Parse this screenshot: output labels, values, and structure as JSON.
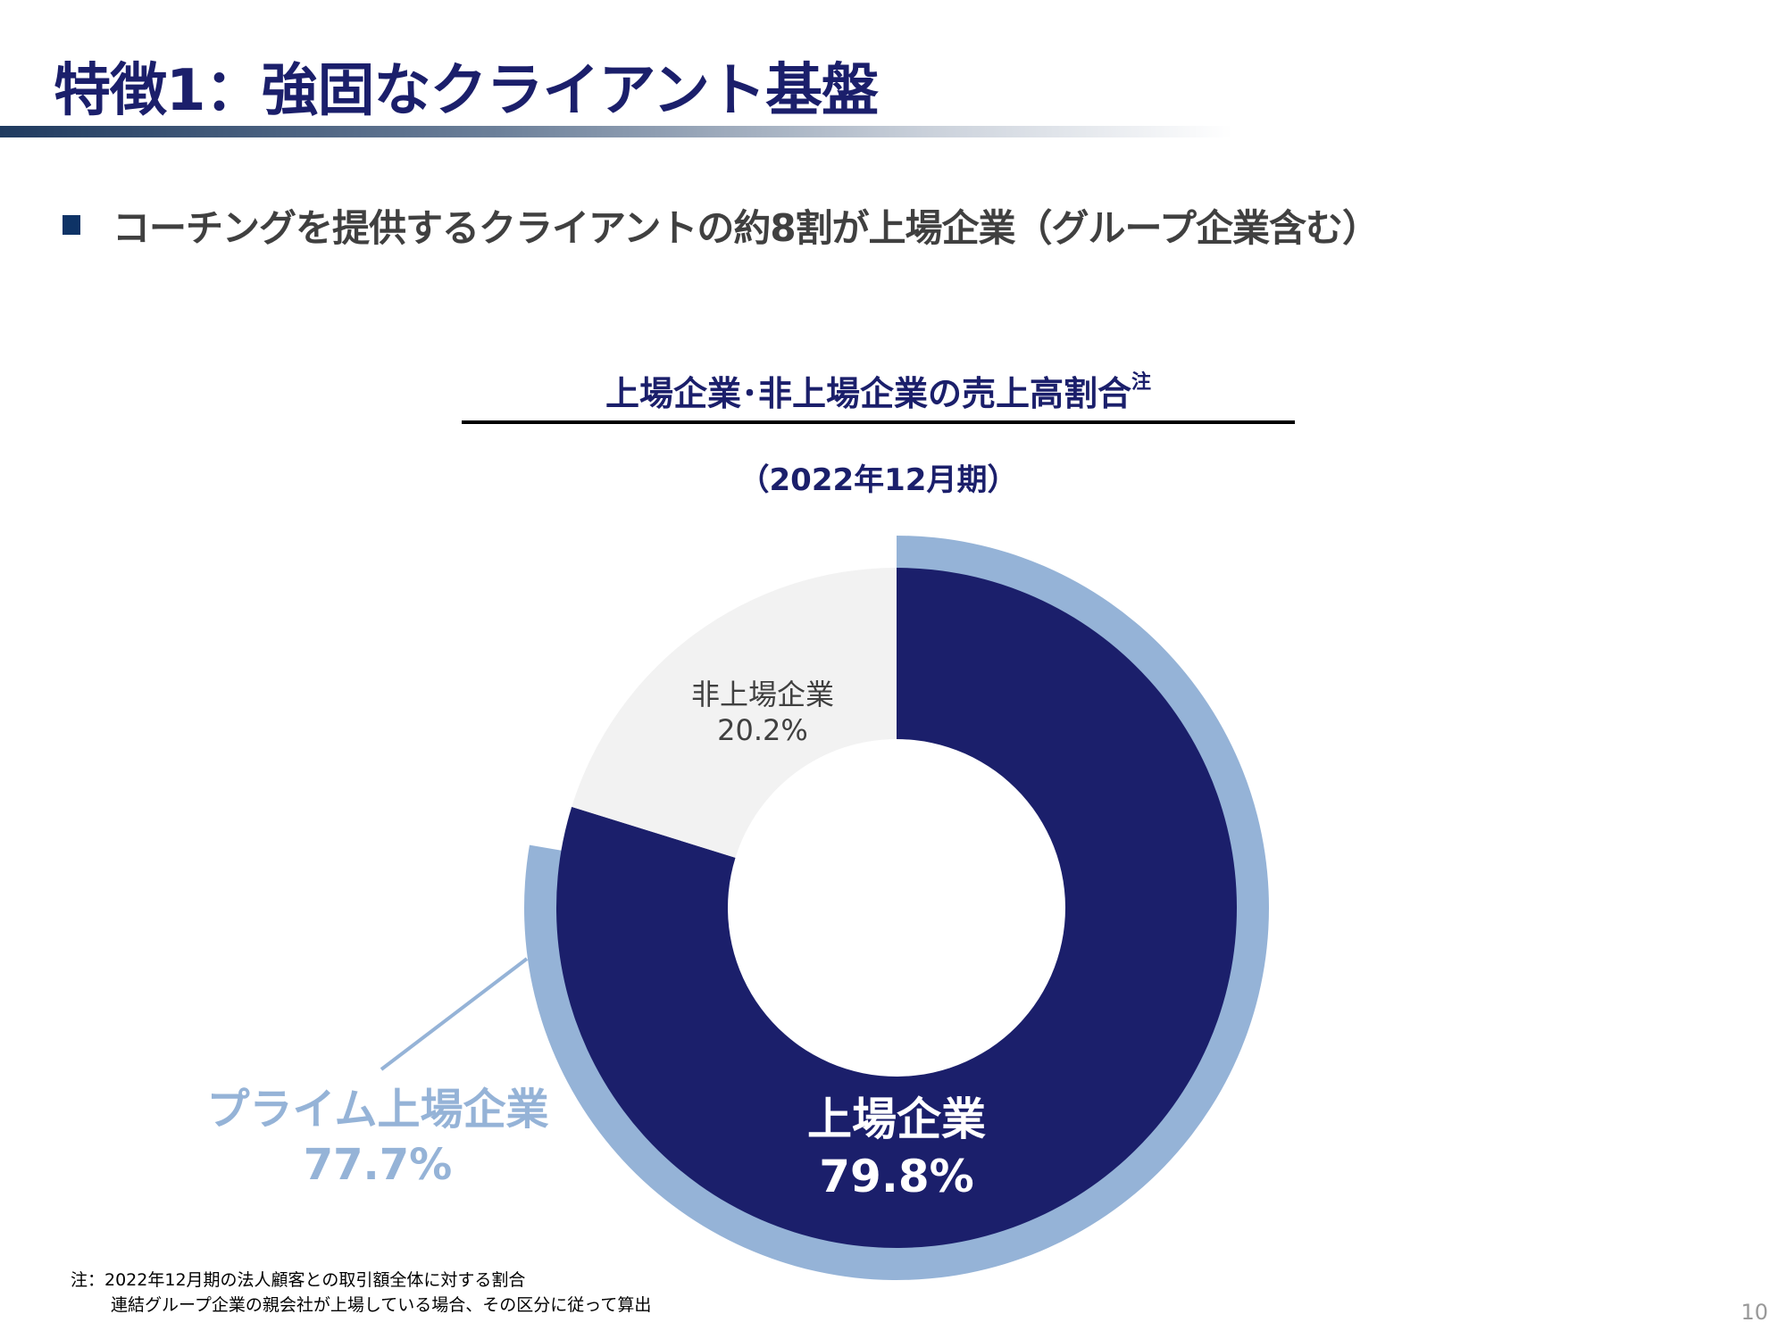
{
  "header": {
    "title": "特徴1：強固なクライアント基盤"
  },
  "headline": "コーチングを提供するクライアントの約8割が上場企業（グループ企業含む）",
  "chart_data": {
    "type": "pie",
    "title": "上場企業･非上場企業の売上高割合",
    "title_note": "注",
    "subtitle": "（2022年12月期）",
    "slices": [
      {
        "label": "上場企業",
        "value": 79.8,
        "value_label": "79.8%",
        "color": "#1b1f6b"
      },
      {
        "label": "非上場企業",
        "value": 20.2,
        "value_label": "20.2%",
        "color": "#f2f2f2"
      }
    ],
    "outer_ring": {
      "label": "プライム上場企業",
      "value": 77.7,
      "value_label": "77.7%",
      "color": "#95b3d7"
    }
  },
  "footnote": {
    "line1": "注：2022年12月期の法人顧客との取引額全体に対する割合",
    "line2": "連結グループ企業の親会社が上場している場合、その区分に従って算出"
  },
  "page_number": "10"
}
